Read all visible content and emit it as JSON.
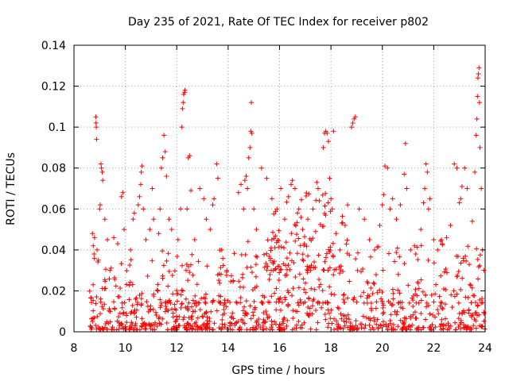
{
  "chart_data": {
    "type": "scatter",
    "title": "Day 235 of 2021, Rate Of TEC Index for receiver p802",
    "xlabel": "GPS time / hours",
    "ylabel": "ROTI / TECUs",
    "xlim": [
      8,
      24
    ],
    "ylim": [
      0,
      0.14
    ],
    "x_ticks": [
      "8",
      "10",
      "12",
      "14",
      "16",
      "18",
      "20",
      "22",
      "24"
    ],
    "y_ticks": [
      "0",
      "0.02",
      "0.04",
      "0.06",
      "0.08",
      "0.1",
      "0.12",
      "0.14"
    ],
    "grid": true,
    "marker": "+",
    "color": "#ff0000",
    "series": [
      {
        "name": "ROTI",
        "points": [
          [
            8.72,
            0.048
          ],
          [
            8.75,
            0.042
          ],
          [
            8.78,
            0.038
          ],
          [
            8.8,
            0.046
          ],
          [
            8.85,
            0.105
          ],
          [
            8.86,
            0.102
          ],
          [
            8.87,
            0.1
          ],
          [
            8.88,
            0.094
          ],
          [
            8.9,
            0.04
          ],
          [
            8.95,
            0.035
          ],
          [
            9.0,
            0.06
          ],
          [
            9.02,
            0.062
          ],
          [
            9.05,
            0.082
          ],
          [
            9.07,
            0.08
          ],
          [
            9.1,
            0.078
          ],
          [
            9.12,
            0.074
          ],
          [
            9.2,
            0.055
          ],
          [
            9.3,
            0.045
          ],
          [
            9.4,
            0.03
          ],
          [
            9.55,
            0.046
          ],
          [
            9.7,
            0.043
          ],
          [
            9.85,
            0.066
          ],
          [
            9.9,
            0.068
          ],
          [
            9.95,
            0.05
          ],
          [
            10.2,
            0.04
          ],
          [
            10.3,
            0.055
          ],
          [
            10.35,
            0.058
          ],
          [
            10.5,
            0.062
          ],
          [
            10.55,
            0.066
          ],
          [
            10.6,
            0.072
          ],
          [
            10.62,
            0.078
          ],
          [
            10.65,
            0.081
          ],
          [
            10.7,
            0.06
          ],
          [
            10.8,
            0.045
          ],
          [
            10.95,
            0.05
          ],
          [
            11.05,
            0.07
          ],
          [
            11.1,
            0.055
          ],
          [
            11.3,
            0.048
          ],
          [
            11.35,
            0.06
          ],
          [
            11.4,
            0.08
          ],
          [
            11.45,
            0.085
          ],
          [
            11.5,
            0.096
          ],
          [
            11.55,
            0.088
          ],
          [
            11.6,
            0.076
          ],
          [
            11.7,
            0.055
          ],
          [
            11.8,
            0.05
          ],
          [
            12.05,
            0.045
          ],
          [
            12.15,
            0.06
          ],
          [
            12.2,
            0.1
          ],
          [
            12.22,
            0.109
          ],
          [
            12.25,
            0.112
          ],
          [
            12.27,
            0.116
          ],
          [
            12.3,
            0.117
          ],
          [
            12.32,
            0.118
          ],
          [
            12.4,
            0.06
          ],
          [
            12.45,
            0.085
          ],
          [
            12.5,
            0.086
          ],
          [
            12.55,
            0.069
          ],
          [
            12.7,
            0.045
          ],
          [
            12.9,
            0.07
          ],
          [
            13.05,
            0.065
          ],
          [
            13.15,
            0.055
          ],
          [
            13.3,
            0.05
          ],
          [
            13.4,
            0.062
          ],
          [
            13.45,
            0.065
          ],
          [
            13.55,
            0.082
          ],
          [
            13.6,
            0.075
          ],
          [
            13.75,
            0.04
          ],
          [
            13.95,
            0.03
          ],
          [
            14.2,
            0.025
          ],
          [
            14.4,
            0.068
          ],
          [
            14.5,
            0.072
          ],
          [
            14.6,
            0.06
          ],
          [
            14.65,
            0.074
          ],
          [
            14.7,
            0.076
          ],
          [
            14.75,
            0.07
          ],
          [
            14.8,
            0.085
          ],
          [
            14.85,
            0.09
          ],
          [
            14.88,
            0.098
          ],
          [
            14.9,
            0.112
          ],
          [
            14.92,
            0.097
          ],
          [
            15.0,
            0.06
          ],
          [
            15.1,
            0.05
          ],
          [
            15.3,
            0.08
          ],
          [
            15.5,
            0.075
          ],
          [
            15.7,
            0.045
          ],
          [
            15.9,
            0.06
          ],
          [
            16.05,
            0.07
          ],
          [
            16.2,
            0.055
          ],
          [
            16.35,
            0.066
          ],
          [
            16.45,
            0.072
          ],
          [
            16.5,
            0.074
          ],
          [
            16.6,
            0.07
          ],
          [
            16.75,
            0.06
          ],
          [
            16.9,
            0.05
          ],
          [
            17.1,
            0.055
          ],
          [
            17.3,
            0.06
          ],
          [
            17.45,
            0.073
          ],
          [
            17.5,
            0.07
          ],
          [
            17.55,
            0.064
          ],
          [
            17.7,
            0.09
          ],
          [
            17.75,
            0.097
          ],
          [
            17.8,
            0.098
          ],
          [
            17.85,
            0.097
          ],
          [
            17.9,
            0.093
          ],
          [
            17.95,
            0.075
          ],
          [
            18.0,
            0.065
          ],
          [
            18.05,
            0.06
          ],
          [
            18.1,
            0.098
          ],
          [
            18.2,
            0.048
          ],
          [
            18.35,
            0.04
          ],
          [
            18.55,
            0.052
          ],
          [
            18.65,
            0.062
          ],
          [
            18.8,
            0.1
          ],
          [
            18.85,
            0.102
          ],
          [
            18.9,
            0.104
          ],
          [
            18.95,
            0.105
          ],
          [
            19.1,
            0.06
          ],
          [
            19.3,
            0.055
          ],
          [
            19.5,
            0.045
          ],
          [
            19.7,
            0.04
          ],
          [
            19.9,
            0.052
          ],
          [
            20.0,
            0.062
          ],
          [
            20.05,
            0.067
          ],
          [
            20.1,
            0.081
          ],
          [
            20.2,
            0.08
          ],
          [
            20.3,
            0.06
          ],
          [
            20.4,
            0.065
          ],
          [
            20.55,
            0.055
          ],
          [
            20.7,
            0.062
          ],
          [
            20.85,
            0.077
          ],
          [
            20.9,
            0.092
          ],
          [
            20.95,
            0.07
          ],
          [
            21.1,
            0.04
          ],
          [
            21.3,
            0.038
          ],
          [
            21.5,
            0.05
          ],
          [
            21.6,
            0.063
          ],
          [
            21.65,
            0.07
          ],
          [
            21.7,
            0.082
          ],
          [
            21.75,
            0.078
          ],
          [
            21.8,
            0.06
          ],
          [
            21.85,
            0.065
          ],
          [
            22.0,
            0.045
          ],
          [
            22.15,
            0.04
          ],
          [
            22.3,
            0.045
          ],
          [
            22.5,
            0.046
          ],
          [
            22.65,
            0.052
          ],
          [
            22.8,
            0.082
          ],
          [
            22.9,
            0.08
          ],
          [
            23.0,
            0.063
          ],
          [
            23.05,
            0.065
          ],
          [
            23.1,
            0.071
          ],
          [
            23.2,
            0.08
          ],
          [
            23.3,
            0.07
          ],
          [
            23.5,
            0.054
          ],
          [
            23.6,
            0.078
          ],
          [
            23.65,
            0.096
          ],
          [
            23.68,
            0.104
          ],
          [
            23.7,
            0.115
          ],
          [
            23.72,
            0.124
          ],
          [
            23.74,
            0.126
          ],
          [
            23.76,
            0.129
          ],
          [
            23.78,
            0.112
          ],
          [
            23.8,
            0.09
          ],
          [
            23.85,
            0.07
          ],
          [
            23.9,
            0.04
          ],
          [
            23.95,
            0.03
          ]
        ],
        "bands": [
          {
            "x_start": 8.6,
            "x_end": 14.3,
            "y_min": 0.001,
            "y_max": 0.014,
            "count": 260
          },
          {
            "x_start": 8.6,
            "x_end": 14.3,
            "y_min": 0.014,
            "y_max": 0.04,
            "count": 130
          },
          {
            "x_start": 14.3,
            "x_end": 24.0,
            "y_min": 0.001,
            "y_max": 0.014,
            "count": 340
          },
          {
            "x_start": 14.3,
            "x_end": 24.0,
            "y_min": 0.014,
            "y_max": 0.045,
            "count": 260
          },
          {
            "x_start": 15.5,
            "x_end": 18.5,
            "y_min": 0.03,
            "y_max": 0.068,
            "count": 90
          }
        ]
      }
    ]
  }
}
